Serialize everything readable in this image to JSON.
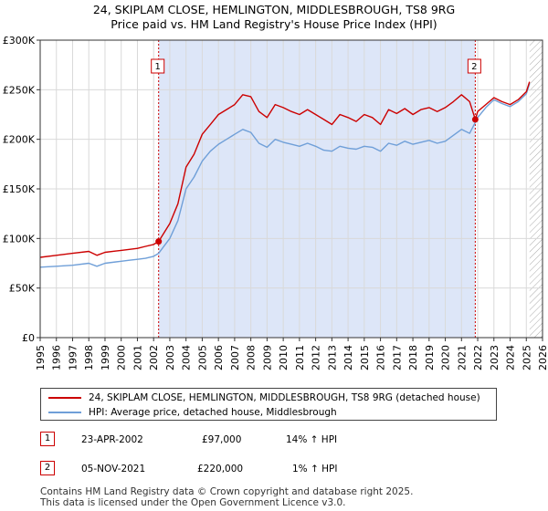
{
  "chart_data": {
    "type": "line",
    "title": "24, SKIPLAM CLOSE, HEMLINGTON, MIDDLESBROUGH, TS8 9RG",
    "subtitle": "Price paid vs. HM Land Registry's House Price Index (HPI)",
    "xlabel": "",
    "ylabel": "",
    "xlim": [
      1995,
      2026
    ],
    "ylim": [
      0,
      300000
    ],
    "x_ticks": [
      "1995",
      "1996",
      "1997",
      "1998",
      "1999",
      "2000",
      "2001",
      "2002",
      "2003",
      "2004",
      "2005",
      "2006",
      "2007",
      "2008",
      "2009",
      "2010",
      "2011",
      "2012",
      "2013",
      "2014",
      "2015",
      "2016",
      "2017",
      "2018",
      "2019",
      "2020",
      "2021",
      "2022",
      "2023",
      "2024",
      "2025",
      "2026"
    ],
    "y_ticks": [
      {
        "value": 0,
        "label": "£0"
      },
      {
        "value": 50000,
        "label": "£50K"
      },
      {
        "value": 100000,
        "label": "£100K"
      },
      {
        "value": 150000,
        "label": "£150K"
      },
      {
        "value": 200000,
        "label": "£200K"
      },
      {
        "value": 250000,
        "label": "£250K"
      },
      {
        "value": 300000,
        "label": "£300K"
      }
    ],
    "grid": true,
    "shaded_region": [
      2002.31,
      2021.85
    ],
    "future_hatch_from": 2025.2,
    "series": [
      {
        "name": "24, SKIPLAM CLOSE, HEMLINGTON, MIDDLESBROUGH, TS8 9RG (detached house)",
        "color": "#cc0000",
        "x": [
          1995,
          1996,
          1997,
          1998,
          1998.5,
          1999,
          2000,
          2000.5,
          2001,
          2001.5,
          2002,
          2002.31,
          2003,
          2003.5,
          2004,
          2004.5,
          2005,
          2005.5,
          2006,
          2006.5,
          2007,
          2007.5,
          2008,
          2008.5,
          2009,
          2009.5,
          2010,
          2010.5,
          2011,
          2011.5,
          2012,
          2012.5,
          2013,
          2013.5,
          2014,
          2014.5,
          2015,
          2015.5,
          2016,
          2016.5,
          2017,
          2017.5,
          2018,
          2018.5,
          2019,
          2019.5,
          2020,
          2020.5,
          2021,
          2021.5,
          2021.85,
          2022,
          2022.5,
          2023,
          2023.5,
          2024,
          2024.5,
          2025,
          2025.2
        ],
        "values": [
          81000,
          83000,
          85000,
          87000,
          83000,
          86000,
          88000,
          89000,
          90000,
          92000,
          94000,
          97000,
          115000,
          135000,
          172000,
          185000,
          205000,
          215000,
          225000,
          230000,
          235000,
          245000,
          243000,
          228000,
          222000,
          235000,
          232000,
          228000,
          225000,
          230000,
          225000,
          220000,
          215000,
          225000,
          222000,
          218000,
          225000,
          222000,
          215000,
          230000,
          226000,
          231000,
          225000,
          230000,
          232000,
          228000,
          232000,
          238000,
          245000,
          238000,
          220000,
          228000,
          235000,
          242000,
          238000,
          235000,
          240000,
          248000,
          258000
        ]
      },
      {
        "name": "HPI: Average price, detached house, Middlesbrough",
        "color": "#6f9fd8",
        "x": [
          1995,
          1996,
          1997,
          1998,
          1998.5,
          1999,
          2000,
          2000.5,
          2001,
          2001.5,
          2002,
          2002.31,
          2003,
          2003.5,
          2004,
          2004.5,
          2005,
          2005.5,
          2006,
          2006.5,
          2007,
          2007.5,
          2008,
          2008.5,
          2009,
          2009.5,
          2010,
          2010.5,
          2011,
          2011.5,
          2012,
          2012.5,
          2013,
          2013.5,
          2014,
          2014.5,
          2015,
          2015.5,
          2016,
          2016.5,
          2017,
          2017.5,
          2018,
          2018.5,
          2019,
          2019.5,
          2020,
          2020.5,
          2021,
          2021.5,
          2021.85,
          2022,
          2022.5,
          2023,
          2023.5,
          2024,
          2024.5,
          2025,
          2025.2
        ],
        "values": [
          71000,
          72000,
          73000,
          75000,
          72000,
          75000,
          77000,
          78000,
          79000,
          80000,
          82000,
          85000,
          100000,
          118000,
          150000,
          162000,
          178000,
          188000,
          195000,
          200000,
          205000,
          210000,
          207000,
          196000,
          192000,
          200000,
          197000,
          195000,
          193000,
          196000,
          193000,
          189000,
          188000,
          193000,
          191000,
          190000,
          193000,
          192000,
          188000,
          196000,
          194000,
          198000,
          195000,
          197000,
          199000,
          196000,
          198000,
          204000,
          210000,
          206000,
          217000,
          222000,
          232000,
          240000,
          236000,
          233000,
          238000,
          246000,
          256000
        ]
      }
    ],
    "markers": [
      {
        "label": "1",
        "x": 2002.31,
        "y": 97000
      },
      {
        "label": "2",
        "x": 2021.85,
        "y": 220000
      }
    ]
  },
  "legend": {
    "series1": "24, SKIPLAM CLOSE, HEMLINGTON, MIDDLESBROUGH, TS8 9RG (detached house)",
    "series2": "HPI: Average price, detached house, Middlesbrough"
  },
  "transactions": [
    {
      "num": "1",
      "date": "23-APR-2002",
      "price": "£97,000",
      "hpi": "14% ↑ HPI"
    },
    {
      "num": "2",
      "date": "05-NOV-2021",
      "price": "£220,000",
      "hpi": "1% ↑ HPI"
    }
  ],
  "footer": {
    "line1": "Contains HM Land Registry data © Crown copyright and database right 2025.",
    "line2": "This data is licensed under the Open Government Licence v3.0."
  }
}
